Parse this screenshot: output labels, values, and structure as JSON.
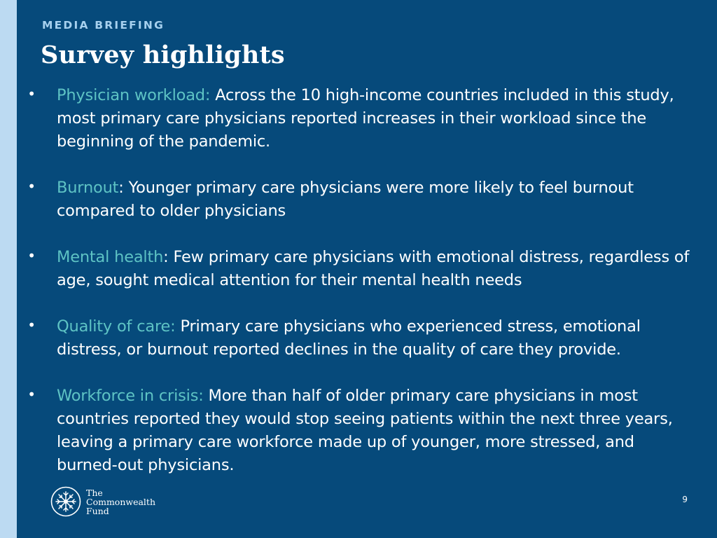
{
  "header": {
    "eyebrow": "MEDIA BRIEFING",
    "title": "Survey highlights"
  },
  "bullets": [
    {
      "lead": "Physician workload:",
      "text": " Across the 10 high-income countries included in this study, most primary care physicians reported increases in their workload since the beginning of the pandemic."
    },
    {
      "lead": "Burnout",
      "text": ": Younger primary care physicians were more likely to feel burnout compared to older physicians"
    },
    {
      "lead": "Mental health",
      "text": ": Few primary care physicians with emotional distress, regardless of age, sought medical attention for their mental health needs"
    },
    {
      "lead": "Quality of care:",
      "text": " Primary care physicians who experienced stress, emotional distress, or burnout reported declines in the quality of care they provide."
    },
    {
      "lead": "Workforce in crisis:",
      "text": " More than half of older primary care physicians in most countries reported they would stop seeing patients within the next three years, leaving a primary care workforce made up of younger, more stressed, and burned-out physicians."
    }
  ],
  "footer": {
    "logo": {
      "icon": "commonwealth-fund-emblem-icon",
      "line1": "The",
      "line2": "Commonwealth",
      "line3": "Fund"
    },
    "page_number": "9"
  },
  "colors": {
    "background": "#064a7b",
    "stripe": "#bcdaf2",
    "eyebrow": "#a6d0ee",
    "accent": "#5ec3c4",
    "text": "#ffffff"
  }
}
